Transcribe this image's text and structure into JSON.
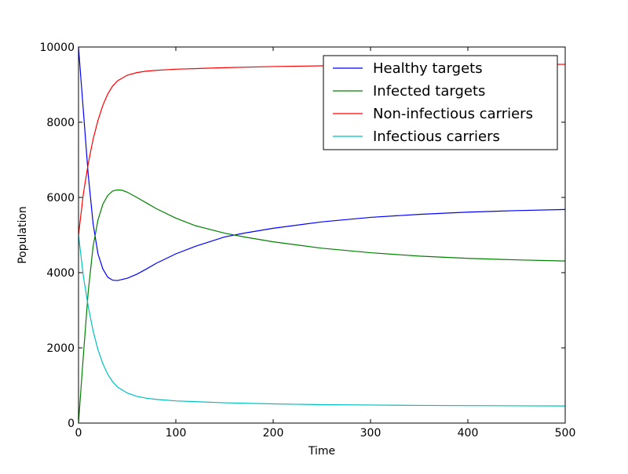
{
  "chart_data": {
    "type": "line",
    "title": "",
    "xlabel": "Time",
    "ylabel": "Population",
    "xlim": [
      0,
      500
    ],
    "ylim": [
      0,
      10000
    ],
    "xticks": [
      0,
      100,
      200,
      300,
      400,
      500
    ],
    "yticks": [
      0,
      2000,
      4000,
      6000,
      8000,
      10000
    ],
    "grid": false,
    "legend_position": "upper right",
    "series": [
      {
        "name": "Healthy targets",
        "color": "#0000ff",
        "points": [
          [
            0,
            10000
          ],
          [
            5,
            8300
          ],
          [
            10,
            6600
          ],
          [
            15,
            5300
          ],
          [
            20,
            4500
          ],
          [
            25,
            4100
          ],
          [
            30,
            3880
          ],
          [
            35,
            3800
          ],
          [
            40,
            3790
          ],
          [
            50,
            3850
          ],
          [
            60,
            3960
          ],
          [
            70,
            4100
          ],
          [
            80,
            4250
          ],
          [
            100,
            4500
          ],
          [
            120,
            4700
          ],
          [
            150,
            4950
          ],
          [
            170,
            5050
          ],
          [
            200,
            5180
          ],
          [
            250,
            5350
          ],
          [
            300,
            5470
          ],
          [
            350,
            5550
          ],
          [
            400,
            5610
          ],
          [
            450,
            5650
          ],
          [
            500,
            5680
          ]
        ]
      },
      {
        "name": "Infected targets",
        "color": "#008000",
        "points": [
          [
            0,
            0
          ],
          [
            5,
            1800
          ],
          [
            10,
            3500
          ],
          [
            15,
            4700
          ],
          [
            20,
            5400
          ],
          [
            25,
            5820
          ],
          [
            30,
            6050
          ],
          [
            35,
            6170
          ],
          [
            40,
            6200
          ],
          [
            45,
            6190
          ],
          [
            50,
            6140
          ],
          [
            60,
            6000
          ],
          [
            70,
            5850
          ],
          [
            80,
            5700
          ],
          [
            100,
            5450
          ],
          [
            120,
            5250
          ],
          [
            150,
            5050
          ],
          [
            170,
            4950
          ],
          [
            200,
            4820
          ],
          [
            250,
            4650
          ],
          [
            300,
            4530
          ],
          [
            350,
            4440
          ],
          [
            400,
            4380
          ],
          [
            450,
            4340
          ],
          [
            500,
            4310
          ]
        ]
      },
      {
        "name": "Non-infectious carriers",
        "color": "#ff0000",
        "points": [
          [
            0,
            5000
          ],
          [
            5,
            6100
          ],
          [
            10,
            6900
          ],
          [
            15,
            7550
          ],
          [
            20,
            8050
          ],
          [
            25,
            8450
          ],
          [
            30,
            8750
          ],
          [
            35,
            8960
          ],
          [
            40,
            9100
          ],
          [
            50,
            9250
          ],
          [
            60,
            9320
          ],
          [
            70,
            9360
          ],
          [
            80,
            9380
          ],
          [
            100,
            9410
          ],
          [
            150,
            9450
          ],
          [
            200,
            9480
          ],
          [
            250,
            9500
          ],
          [
            300,
            9510
          ],
          [
            350,
            9520
          ],
          [
            400,
            9530
          ],
          [
            450,
            9535
          ],
          [
            500,
            9540
          ]
        ]
      },
      {
        "name": "Infectious carriers",
        "color": "#00bfbf",
        "points": [
          [
            0,
            5000
          ],
          [
            5,
            3900
          ],
          [
            10,
            3100
          ],
          [
            15,
            2450
          ],
          [
            20,
            1950
          ],
          [
            25,
            1580
          ],
          [
            30,
            1300
          ],
          [
            35,
            1100
          ],
          [
            40,
            960
          ],
          [
            50,
            800
          ],
          [
            60,
            710
          ],
          [
            70,
            660
          ],
          [
            80,
            630
          ],
          [
            100,
            590
          ],
          [
            150,
            540
          ],
          [
            200,
            510
          ],
          [
            250,
            490
          ],
          [
            300,
            480
          ],
          [
            350,
            470
          ],
          [
            400,
            465
          ],
          [
            450,
            460
          ],
          [
            500,
            455
          ]
        ]
      }
    ]
  }
}
